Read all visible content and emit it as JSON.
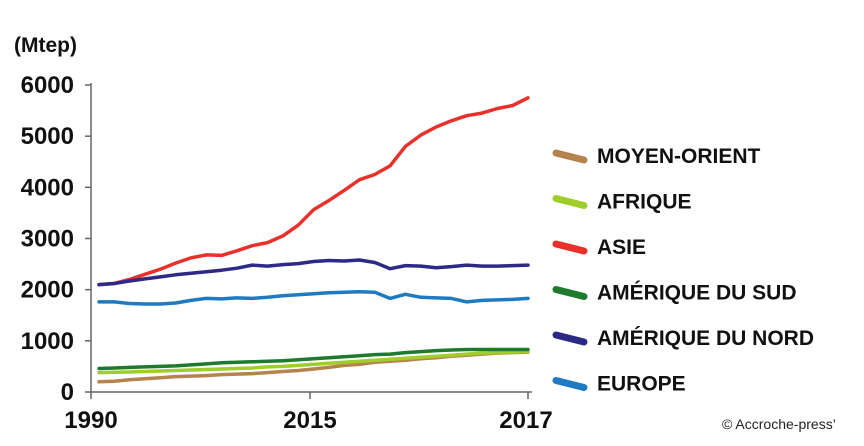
{
  "chart_data": {
    "type": "line",
    "unit_label": "(Mtep)",
    "ylim": [
      0,
      6000
    ],
    "y_ticks": [
      0,
      1000,
      2000,
      3000,
      4000,
      5000,
      6000
    ],
    "x_tick_labels": [
      "1990",
      "2015",
      "2017"
    ],
    "x_points": 29,
    "legend_position": "right",
    "credit": "© Accroche-press’",
    "series": [
      {
        "name": "MOYEN-ORIENT",
        "color": "#b5834e",
        "values": [
          200,
          210,
          240,
          260,
          280,
          300,
          310,
          320,
          340,
          350,
          360,
          380,
          400,
          420,
          450,
          480,
          520,
          540,
          580,
          600,
          620,
          650,
          670,
          700,
          720,
          740,
          760,
          770,
          780
        ]
      },
      {
        "name": "AFRIQUE",
        "color": "#9fce2a",
        "values": [
          380,
          385,
          390,
          400,
          410,
          420,
          430,
          440,
          450,
          460,
          470,
          490,
          500,
          520,
          540,
          560,
          580,
          600,
          620,
          640,
          660,
          680,
          700,
          720,
          740,
          760,
          770,
          780,
          790
        ]
      },
      {
        "name": "ASIE",
        "color": "#e8312a",
        "values": [
          2100,
          2120,
          2200,
          2300,
          2400,
          2520,
          2620,
          2680,
          2670,
          2760,
          2860,
          2920,
          3050,
          3260,
          3560,
          3740,
          3940,
          4150,
          4250,
          4420,
          4800,
          5020,
          5180,
          5300,
          5400,
          5450,
          5540,
          5600,
          5750
        ]
      },
      {
        "name": "AMÉRIQUE DU SUD",
        "color": "#1e7a2d",
        "values": [
          460,
          470,
          480,
          490,
          500,
          510,
          530,
          550,
          570,
          580,
          590,
          600,
          610,
          630,
          650,
          670,
          690,
          710,
          730,
          740,
          770,
          790,
          810,
          820,
          830,
          830,
          830,
          830,
          830
        ]
      },
      {
        "name": "AMÉRIQUE DU NORD",
        "color": "#2c2a86",
        "values": [
          2100,
          2120,
          2170,
          2210,
          2250,
          2290,
          2320,
          2350,
          2380,
          2420,
          2480,
          2460,
          2490,
          2510,
          2550,
          2570,
          2560,
          2580,
          2530,
          2410,
          2470,
          2460,
          2430,
          2450,
          2480,
          2460,
          2460,
          2470,
          2480
        ]
      },
      {
        "name": "EUROPE",
        "color": "#1f7bc1",
        "values": [
          1760,
          1760,
          1730,
          1720,
          1720,
          1740,
          1790,
          1830,
          1820,
          1840,
          1830,
          1850,
          1880,
          1900,
          1920,
          1940,
          1950,
          1960,
          1950,
          1830,
          1910,
          1850,
          1840,
          1830,
          1760,
          1790,
          1800,
          1810,
          1830
        ]
      }
    ]
  }
}
